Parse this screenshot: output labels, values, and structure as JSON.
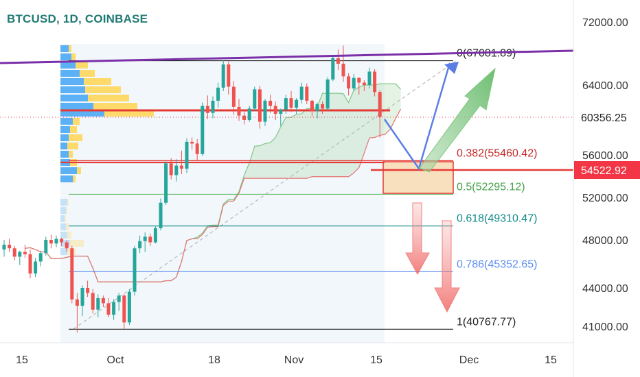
{
  "header": {
    "title": "BTCUSD, 1D, COINBASE"
  },
  "colors": {
    "up": "#26a69a",
    "down": "#ef5350",
    "resistance": "#7b2fa8",
    "support_red": "#e53935",
    "fib_teal": "#26a69a",
    "fib_blue": "#5b8def",
    "fib_green": "#66bb6a",
    "projection_blue": "#5b7ee5",
    "green_arrow": "#7bc67b",
    "red_arrow": "#f08080",
    "price_badge": "#f23645"
  },
  "chart_data": {
    "type": "candlestick",
    "symbol": "BTCUSD",
    "timeframe": "1D",
    "exchange": "COINBASE",
    "ylim": [
      40000,
      74000
    ],
    "y_ticks": [
      "72000.00",
      "64000.00",
      "56000.00",
      "52000.00",
      "48000.00",
      "44000.00",
      "41000.00"
    ],
    "x_ticks": [
      "15",
      "Oct",
      "18",
      "Nov",
      "15",
      "Dec",
      "15"
    ],
    "last_price": "60356.25",
    "marked_price": "54522.92",
    "fibonacci": [
      {
        "level": "0",
        "label": "0(67081.89)",
        "price": 67081.89
      },
      {
        "level": "0.382",
        "label": "0.382(55460.42)",
        "price": 55460.42
      },
      {
        "level": "0.5",
        "label": "0.5(52295.12)",
        "price": 52295.12
      },
      {
        "level": "0.618",
        "label": "0.618(49310.47)",
        "price": 49310.47
      },
      {
        "level": "0.786",
        "label": "0.786(45352.65)",
        "price": 45352.65
      },
      {
        "level": "1",
        "label": "1(40767.77)",
        "price": 40767.77
      }
    ],
    "candles": [
      [
        47200,
        48000,
        46600,
        47600
      ],
      [
        47600,
        48100,
        47000,
        47300
      ],
      [
        47300,
        47500,
        46300,
        46600
      ],
      [
        46600,
        47100,
        45900,
        47000
      ],
      [
        47000,
        47600,
        46500,
        46800
      ],
      [
        46800,
        47200,
        44800,
        45200
      ],
      [
        45200,
        46500,
        44900,
        46200
      ],
      [
        46200,
        47100,
        45800,
        46900
      ],
      [
        46900,
        48300,
        46700,
        48000
      ],
      [
        48000,
        48500,
        47300,
        47700
      ],
      [
        47700,
        48400,
        47400,
        48100
      ],
      [
        48100,
        48200,
        47500,
        47800
      ],
      [
        47800,
        48000,
        47000,
        47300
      ],
      [
        47300,
        47500,
        42800,
        43100
      ],
      [
        43100,
        43600,
        40500,
        42600
      ],
      [
        42600,
        44200,
        41800,
        44000
      ],
      [
        44000,
        44600,
        43300,
        43600
      ],
      [
        43600,
        43900,
        42000,
        42300
      ],
      [
        42300,
        43500,
        41700,
        43200
      ],
      [
        43200,
        43400,
        42500,
        42800
      ],
      [
        42800,
        43200,
        41700,
        41900
      ],
      [
        41900,
        43100,
        41500,
        42900
      ],
      [
        42900,
        43600,
        42200,
        43400
      ],
      [
        43400,
        43500,
        40800,
        41300
      ],
      [
        41300,
        43900,
        41100,
        43700
      ],
      [
        43700,
        47500,
        43400,
        47300
      ],
      [
        47300,
        48400,
        46900,
        47900
      ],
      [
        47900,
        48700,
        47000,
        48300
      ],
      [
        48300,
        48600,
        47500,
        47800
      ],
      [
        47800,
        49300,
        47700,
        49100
      ],
      [
        49100,
        51900,
        48900,
        51500
      ],
      [
        51500,
        55400,
        51300,
        55200
      ],
      [
        55200,
        55700,
        53700,
        54100
      ],
      [
        54100,
        55600,
        53500,
        55000
      ],
      [
        55000,
        56500,
        54200,
        54700
      ],
      [
        54700,
        57900,
        54300,
        57500
      ],
      [
        57500,
        58000,
        56600,
        57300
      ],
      [
        57300,
        57800,
        55500,
        56100
      ],
      [
        56100,
        62000,
        55900,
        61600
      ],
      [
        61600,
        62800,
        60100,
        60800
      ],
      [
        60800,
        62700,
        60200,
        62200
      ],
      [
        62200,
        64300,
        61400,
        63700
      ],
      [
        63700,
        67100,
        63300,
        66600
      ],
      [
        66600,
        67000,
        62900,
        63800
      ],
      [
        63800,
        64500,
        60600,
        61500
      ],
      [
        61500,
        62400,
        59900,
        60500
      ],
      [
        60500,
        61200,
        59500,
        60000
      ],
      [
        60000,
        61600,
        59800,
        61300
      ],
      [
        61300,
        63800,
        61000,
        63500
      ],
      [
        63500,
        63900,
        59000,
        59800
      ],
      [
        59800,
        62400,
        59300,
        62200
      ],
      [
        62200,
        62900,
        60800,
        61600
      ],
      [
        61600,
        62100,
        60000,
        60700
      ],
      [
        60700,
        61300,
        59300,
        61200
      ],
      [
        61200,
        62900,
        60700,
        62500
      ],
      [
        62500,
        63300,
        60900,
        61400
      ],
      [
        61400,
        62500,
        60700,
        62300
      ],
      [
        62300,
        64300,
        61900,
        63800
      ],
      [
        63800,
        64200,
        61800,
        62200
      ],
      [
        62200,
        62300,
        60400,
        61000
      ],
      [
        61000,
        62000,
        60200,
        61800
      ],
      [
        61800,
        62100,
        60700,
        61300
      ],
      [
        61300,
        65000,
        61100,
        64700
      ],
      [
        64700,
        67800,
        64500,
        67400
      ],
      [
        67400,
        68500,
        65900,
        66700
      ],
      [
        66700,
        69000,
        64400,
        65100
      ],
      [
        65100,
        65500,
        62800,
        63600
      ],
      [
        63600,
        65400,
        63300,
        64900
      ],
      [
        64900,
        65000,
        62900,
        64300
      ],
      [
        64300,
        64600,
        63300,
        64000
      ],
      [
        64000,
        66200,
        63600,
        65700
      ],
      [
        65700,
        66000,
        62700,
        63200
      ],
      [
        63200,
        63400,
        58000,
        60356
      ]
    ]
  }
}
